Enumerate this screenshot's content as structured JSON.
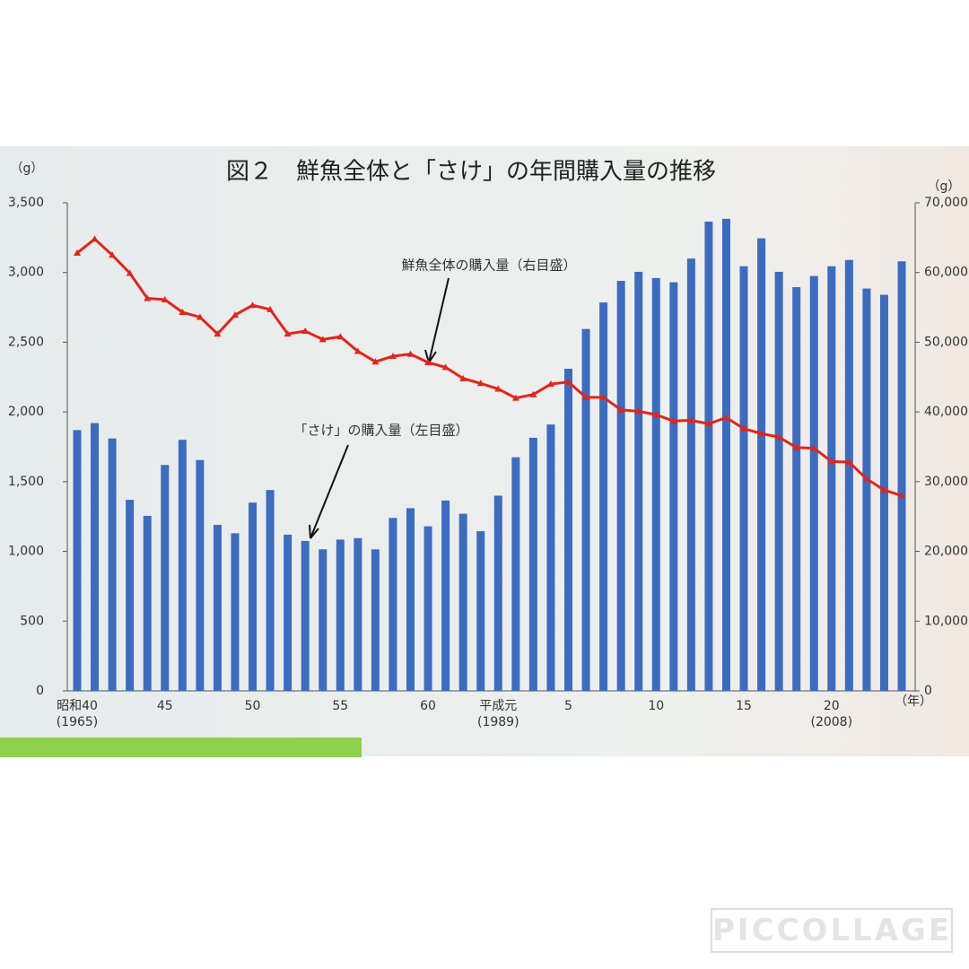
{
  "chart_data": {
    "type": "bar",
    "title": "図２　鮮魚全体と「さけ」の年間購入量の推移",
    "y_unit": "（g）",
    "y2_unit": "（g）",
    "x_unit": "（年）",
    "categories": [
      "昭和40\n(1965)",
      null,
      null,
      null,
      null,
      "45",
      null,
      null,
      null,
      null,
      "50",
      null,
      null,
      null,
      null,
      "55",
      null,
      null,
      null,
      null,
      "60",
      null,
      null,
      null,
      "平成元\n(1989)",
      null,
      null,
      null,
      "5",
      null,
      null,
      null,
      null,
      "10",
      null,
      null,
      null,
      null,
      "15",
      null,
      null,
      null,
      null,
      "20\n(2008)",
      null,
      null,
      null,
      null
    ],
    "series": [
      {
        "name": "「さけ」の購入量（左目盛）",
        "type": "bar",
        "color": "#3b6cc0",
        "values": [
          1870,
          1920,
          1810,
          1370,
          1255,
          1620,
          1800,
          1655,
          1190,
          1130,
          1350,
          1440,
          1120,
          1075,
          1015,
          1085,
          1095,
          1015,
          1240,
          1310,
          1180,
          1365,
          1270,
          1145,
          1400,
          1675,
          1815,
          1910,
          2310,
          2595,
          2785,
          2940,
          3005,
          2960,
          2930,
          3100,
          3365,
          3385,
          3045,
          3245,
          3005,
          2895,
          2975,
          3045,
          3090,
          2885,
          2840,
          3080
        ]
      },
      {
        "name": "鮮魚全体の購入量（右目盛）",
        "type": "line",
        "color": "#e3241b",
        "axis": "y2",
        "values": [
          62800,
          64800,
          62500,
          59900,
          56300,
          56100,
          54300,
          53600,
          51200,
          53900,
          55300,
          54700,
          51200,
          51600,
          50400,
          50800,
          48700,
          47200,
          48000,
          48300,
          47100,
          46400,
          44800,
          44100,
          43300,
          42000,
          42500,
          44000,
          44300,
          42100,
          42100,
          40300,
          40100,
          39600,
          38700,
          38800,
          38300,
          39200,
          37600,
          36900,
          36400,
          34900,
          34800,
          32900,
          32800,
          30400,
          28800,
          28000
        ]
      }
    ],
    "ylim": [
      0,
      3500
    ],
    "yticks": [
      0,
      500,
      {
        "value": 1000,
        "label": "1,000"
      },
      {
        "value": 1500,
        "label": "1,500"
      },
      {
        "value": 2000,
        "label": "2,000"
      },
      {
        "value": 2500,
        "label": "2,500"
      },
      {
        "value": 3000,
        "label": "3,000"
      },
      {
        "value": 3500,
        "label": "3,500"
      }
    ],
    "y2lim": [
      0,
      70000
    ],
    "y2ticks": [
      0,
      {
        "value": 10000,
        "label": "10,000"
      },
      {
        "value": 20000,
        "label": "20,000"
      },
      {
        "value": 30000,
        "label": "30,000"
      },
      {
        "value": 40000,
        "label": "40,000"
      },
      {
        "value": 50000,
        "label": "50,000"
      },
      {
        "value": 60000,
        "label": "60,000"
      },
      {
        "value": 70000,
        "label": "70,000"
      }
    ]
  },
  "watermark": "PICCOLLAGE"
}
